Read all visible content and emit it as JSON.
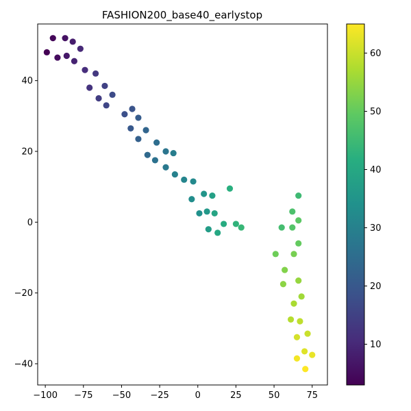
{
  "chart_data": {
    "type": "scatter",
    "title": "FASHION200_base40_earlystop",
    "xlabel": "",
    "ylabel": "",
    "xlim": [
      -105,
      85
    ],
    "ylim": [
      -46,
      56
    ],
    "xticks": [
      -100,
      -75,
      -50,
      -25,
      0,
      25,
      50,
      75
    ],
    "yticks": [
      -40,
      -20,
      0,
      20,
      40
    ],
    "grid": false,
    "colormap": "viridis",
    "colorbar": {
      "range": [
        3,
        65
      ],
      "ticks": [
        10,
        20,
        30,
        40,
        50,
        60
      ]
    },
    "points": [
      {
        "x": -99,
        "y": 48,
        "c": 3
      },
      {
        "x": -95,
        "y": 52,
        "c": 4
      },
      {
        "x": -92,
        "y": 46.5,
        "c": 5
      },
      {
        "x": -87,
        "y": 52,
        "c": 6
      },
      {
        "x": -86,
        "y": 47,
        "c": 7
      },
      {
        "x": -82,
        "y": 51,
        "c": 8
      },
      {
        "x": -81,
        "y": 45.5,
        "c": 9
      },
      {
        "x": -77,
        "y": 49,
        "c": 10
      },
      {
        "x": -74,
        "y": 43,
        "c": 11
      },
      {
        "x": -71,
        "y": 38,
        "c": 12
      },
      {
        "x": -67,
        "y": 42,
        "c": 13
      },
      {
        "x": -65,
        "y": 35,
        "c": 14
      },
      {
        "x": -61,
        "y": 38.5,
        "c": 15
      },
      {
        "x": -60,
        "y": 33,
        "c": 16
      },
      {
        "x": -56,
        "y": 36,
        "c": 17
      },
      {
        "x": -48,
        "y": 30.5,
        "c": 18
      },
      {
        "x": -43,
        "y": 32,
        "c": 19
      },
      {
        "x": -44,
        "y": 26.5,
        "c": 20
      },
      {
        "x": -39,
        "y": 29.5,
        "c": 21
      },
      {
        "x": -39,
        "y": 23.5,
        "c": 22
      },
      {
        "x": -34,
        "y": 26,
        "c": 23
      },
      {
        "x": -33,
        "y": 19,
        "c": 24
      },
      {
        "x": -27,
        "y": 22.5,
        "c": 25
      },
      {
        "x": -28,
        "y": 17.5,
        "c": 26
      },
      {
        "x": -21,
        "y": 20,
        "c": 27
      },
      {
        "x": -21,
        "y": 15.5,
        "c": 28
      },
      {
        "x": -16,
        "y": 19.5,
        "c": 29
      },
      {
        "x": -15,
        "y": 13.5,
        "c": 30
      },
      {
        "x": -9,
        "y": 12,
        "c": 31
      },
      {
        "x": -3,
        "y": 11.5,
        "c": 32
      },
      {
        "x": -4,
        "y": 6.5,
        "c": 33
      },
      {
        "x": 1,
        "y": 2.5,
        "c": 34
      },
      {
        "x": 4,
        "y": 8,
        "c": 35
      },
      {
        "x": 6,
        "y": 3,
        "c": 36
      },
      {
        "x": 7,
        "y": -2,
        "c": 37
      },
      {
        "x": 9.5,
        "y": 7.5,
        "c": 38
      },
      {
        "x": 11,
        "y": 2.5,
        "c": 39
      },
      {
        "x": 13,
        "y": -3,
        "c": 40
      },
      {
        "x": 17,
        "y": -0.5,
        "c": 41
      },
      {
        "x": 21,
        "y": 9.5,
        "c": 42
      },
      {
        "x": 25,
        "y": -0.5,
        "c": 43
      },
      {
        "x": 28.5,
        "y": -1.5,
        "c": 44
      },
      {
        "x": 66,
        "y": 7.5,
        "c": 45
      },
      {
        "x": 55,
        "y": -1.5,
        "c": 46
      },
      {
        "x": 62,
        "y": 3,
        "c": 47
      },
      {
        "x": 62,
        "y": -1.5,
        "c": 48
      },
      {
        "x": 66,
        "y": 0.5,
        "c": 49
      },
      {
        "x": 66,
        "y": -6,
        "c": 50
      },
      {
        "x": 51,
        "y": -9,
        "c": 51
      },
      {
        "x": 63,
        "y": -9,
        "c": 52
      },
      {
        "x": 57,
        "y": -13.5,
        "c": 53
      },
      {
        "x": 56,
        "y": -17.5,
        "c": 54
      },
      {
        "x": 66,
        "y": -16.5,
        "c": 55
      },
      {
        "x": 68,
        "y": -21,
        "c": 56
      },
      {
        "x": 63,
        "y": -23,
        "c": 57
      },
      {
        "x": 61,
        "y": -27.5,
        "c": 58
      },
      {
        "x": 67,
        "y": -28,
        "c": 59
      },
      {
        "x": 72,
        "y": -31.5,
        "c": 60
      },
      {
        "x": 65,
        "y": -32.5,
        "c": 61
      },
      {
        "x": 70,
        "y": -36.5,
        "c": 62
      },
      {
        "x": 75,
        "y": -37.5,
        "c": 63
      },
      {
        "x": 65,
        "y": -38.5,
        "c": 64
      },
      {
        "x": 70.5,
        "y": -41.5,
        "c": 65
      }
    ]
  }
}
